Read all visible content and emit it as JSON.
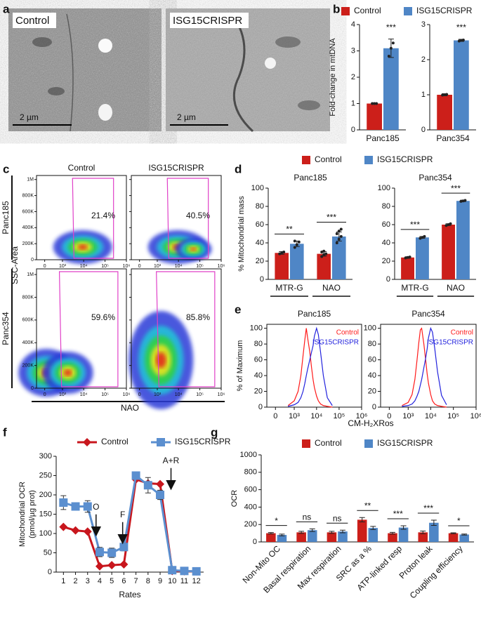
{
  "panel_labels": [
    "a",
    "b",
    "c",
    "d",
    "e",
    "f",
    "g"
  ],
  "images": [
    {
      "label": "Control",
      "scale_bar": "2 µm"
    },
    {
      "label": "ISG15CRISPR",
      "scale_bar": "2 µm"
    }
  ],
  "chart_data": [
    {
      "type": "bar",
      "ylabel": "Fold-change in mtDNA",
      "categories": [
        "Panc185"
      ],
      "legend": "top",
      "series": [
        {
          "name": "Control",
          "color": "#cc1f1a",
          "values": [
            1.0
          ],
          "errors": [
            0.02
          ],
          "points": [
            [
              1.0,
              1.0,
              1.0
            ]
          ]
        },
        {
          "name": "ISG15CRISPR",
          "color": "#4f86c6",
          "values": [
            3.1
          ],
          "errors": [
            0.35
          ],
          "points": [
            [
              2.8,
              3.1,
              3.3
            ]
          ]
        }
      ],
      "significance": [
        "***"
      ],
      "ylim": [
        0,
        4
      ],
      "yticks": [
        0,
        1,
        2,
        3,
        4
      ]
    },
    {
      "type": "bar",
      "categories": [
        "Panc354"
      ],
      "series": [
        {
          "color": "#cc1f1a",
          "values": [
            1.0
          ],
          "errors": [
            0.03
          ],
          "points": [
            [
              0.99,
              1.0,
              1.01
            ]
          ]
        },
        {
          "color": "#4f86c6",
          "values": [
            2.55
          ],
          "errors": [
            0.03
          ],
          "points": [
            [
              2.53,
              2.55,
              2.56
            ]
          ]
        }
      ],
      "significance": [
        "***"
      ],
      "ylim": [
        0,
        3
      ],
      "yticks": [
        0,
        1,
        2,
        3
      ]
    },
    {
      "type": "flow",
      "ylabel": "SSC-Area",
      "xlabel": "NAO",
      "columns": [
        "Control",
        "ISG15CRISPR"
      ],
      "rows": [
        "Panc185",
        "Panc354"
      ],
      "values": [
        [
          21.4,
          40.5
        ],
        [
          59.6,
          85.8
        ]
      ],
      "value_labels": [
        [
          "21.4%",
          "40.5%"
        ],
        [
          "59.6%",
          "85.8%"
        ]
      ],
      "xscale": "biexponential",
      "frame": true,
      "xlim": [
        -300,
        1000000
      ],
      "xticks": [
        0,
        {
          "value": 1000,
          "label": "10³"
        },
        {
          "value": 10000,
          "label": "10⁴"
        },
        {
          "value": 100000,
          "label": "10⁵"
        },
        {
          "value": 1000000,
          "label": "10⁶"
        }
      ],
      "ylim": [
        0,
        1050000
      ],
      "yticks": [
        0,
        {
          "value": 200000,
          "label": "200K"
        },
        {
          "value": 400000,
          "label": "400K"
        },
        {
          "value": 600000,
          "label": "600K"
        },
        {
          "value": 800000,
          "label": "800K"
        },
        {
          "value": 1000000,
          "label": "1M"
        }
      ]
    },
    {
      "type": "bar",
      "title": "Panc185",
      "ylabel": "% Mitochondrial mass",
      "categories": [
        "MTR-G",
        "NAO"
      ],
      "legend": "top",
      "series": [
        {
          "name": "Control",
          "color": "#cc1f1a",
          "values": [
            29,
            28
          ],
          "errors": [
            1.5,
            2.5
          ],
          "points": [
            [
              28,
              29,
              30
            ],
            [
              25,
              27,
              28,
              30,
              31
            ]
          ]
        },
        {
          "name": "ISG15CRISPR",
          "color": "#4f86c6",
          "values": [
            39,
            47
          ],
          "errors": [
            3,
            5
          ],
          "points": [
            [
              35,
              38,
              41,
              42
            ],
            [
              40,
              44,
              47,
              50,
              53,
              55
            ]
          ]
        }
      ],
      "significance": [
        "**",
        "***"
      ],
      "ylim": [
        0,
        100
      ],
      "yticks": [
        0,
        20,
        40,
        60,
        80,
        100
      ]
    },
    {
      "type": "bar",
      "title": "Panc354",
      "categories": [
        "MTR-G",
        "NAO"
      ],
      "series": [
        {
          "color": "#cc1f1a",
          "values": [
            24,
            60
          ],
          "errors": [
            0.8,
            1
          ],
          "points": [
            [
              23.5,
              24,
              24.5
            ],
            [
              59,
              60,
              61
            ]
          ]
        },
        {
          "color": "#4f86c6",
          "values": [
            46,
            86
          ],
          "errors": [
            1,
            0.8
          ],
          "points": [
            [
              45,
              46,
              47
            ],
            [
              85.5,
              86,
              86.5
            ]
          ]
        }
      ],
      "significance": [
        "***",
        "***"
      ],
      "ylim": [
        0,
        100
      ],
      "yticks": [
        0,
        20,
        40,
        60,
        80,
        100
      ]
    },
    {
      "type": "line",
      "title": "Panc185",
      "ylabel": "% of Maximum",
      "xlabel": "CM-H₂XRos",
      "xscale": "biexponential",
      "frame": true,
      "legend": "upper right",
      "x": [
        500,
        1000,
        1500,
        2000,
        2500,
        3000,
        3500,
        4000,
        5000,
        6000,
        7000,
        8000,
        10000,
        12000,
        15000,
        20000,
        30000,
        50000
      ],
      "series": [
        {
          "name": "Control",
          "color": "#ff1a1a",
          "values": [
            2,
            8,
            20,
            40,
            65,
            85,
            100,
            88,
            70,
            50,
            35,
            25,
            14,
            8,
            4,
            2,
            1,
            0
          ]
        },
        {
          "name": "ISG15CRISPR",
          "color": "#2222dd",
          "values": [
            1,
            3,
            6,
            12,
            20,
            30,
            40,
            48,
            60,
            70,
            78,
            90,
            100,
            92,
            70,
            40,
            12,
            2
          ]
        }
      ],
      "xlim": [
        -300,
        1000000
      ],
      "xticks": [
        0,
        {
          "value": 1000,
          "label": "10³"
        },
        {
          "value": 10000,
          "label": "10⁴"
        },
        {
          "value": 100000,
          "label": "10⁵"
        },
        {
          "value": 1000000,
          "label": "10⁶"
        }
      ],
      "ylim": [
        0,
        105
      ],
      "yticks": [
        0,
        20,
        40,
        60,
        80,
        100
      ]
    },
    {
      "type": "line",
      "title": "Panc354",
      "xscale": "biexponential",
      "frame": true,
      "legend": "upper right",
      "x": [
        500,
        1000,
        1500,
        2000,
        2500,
        3000,
        3500,
        4000,
        5000,
        6000,
        7000,
        8000,
        10000,
        12000,
        15000,
        20000,
        30000,
        50000
      ],
      "series": [
        {
          "name": "Control",
          "color": "#ff1a1a",
          "values": [
            2,
            6,
            16,
            35,
            60,
            82,
            98,
            100,
            80,
            60,
            42,
            30,
            16,
            8,
            4,
            2,
            1,
            0
          ]
        },
        {
          "name": "ISG15CRISPR",
          "color": "#2222dd",
          "values": [
            1,
            2,
            4,
            8,
            14,
            20,
            28,
            35,
            50,
            62,
            74,
            88,
            100,
            95,
            75,
            45,
            15,
            3
          ]
        }
      ],
      "xlim": [
        -300,
        1000000
      ],
      "xticks": [
        0,
        {
          "value": 1000,
          "label": "10³"
        },
        {
          "value": 10000,
          "label": "10⁴"
        },
        {
          "value": 100000,
          "label": "10⁵"
        },
        {
          "value": 1000000,
          "label": "10⁶"
        }
      ],
      "ylim": [
        0,
        105
      ],
      "yticks": [
        0,
        20,
        40,
        60,
        80,
        100
      ]
    },
    {
      "type": "line",
      "ylabel": [
        "Mitochondrial OCR",
        "(pmol/µg prot)"
      ],
      "xlabel": "Rates",
      "legend": "top",
      "x": [
        1,
        2,
        3,
        4,
        5,
        6,
        7,
        8,
        9,
        10,
        11,
        12
      ],
      "series": [
        {
          "name": "Control",
          "color": "#c8161d",
          "marker": "diamond",
          "values": [
            117,
            108,
            105,
            15,
            18,
            20,
            240,
            230,
            228,
            3,
            2,
            2
          ]
        },
        {
          "name": "ISG15CRISPR",
          "color": "#5b8fcf",
          "marker": "square",
          "values": [
            180,
            170,
            170,
            52,
            50,
            65,
            250,
            225,
            200,
            5,
            3,
            2
          ],
          "errors": [
            18,
            10,
            15,
            12,
            12,
            10,
            10,
            20,
            12,
            2,
            2,
            2
          ]
        }
      ],
      "annotations": [
        {
          "text": "O",
          "x": 3.7,
          "y": 95
        },
        {
          "text": "F",
          "x": 5.9,
          "y": 75
        },
        {
          "text": "A+R",
          "x": 9.9,
          "y": 215
        }
      ],
      "xlim": [
        0.4,
        12.6
      ],
      "xticks": [
        1,
        2,
        3,
        4,
        5,
        6,
        7,
        8,
        9,
        10,
        11,
        12
      ],
      "ylim": [
        0,
        300
      ],
      "yticks": [
        0,
        50,
        100,
        150,
        200,
        250,
        300
      ]
    },
    {
      "type": "bar",
      "ylabel": "OCR",
      "legend": "top",
      "categories": [
        "Non-Mito OC",
        "Basal respiration",
        "Max respiration",
        "SRC as a %",
        "ATP-linked resp",
        "Proton leak",
        "Coupling efficiency"
      ],
      "series": [
        {
          "name": "Control",
          "color": "#cc1f1a",
          "values": [
            100,
            110,
            110,
            255,
            100,
            110,
            100
          ],
          "errors": [
            8,
            12,
            12,
            25,
            10,
            15,
            5
          ]
        },
        {
          "name": "ISG15CRISPR",
          "color": "#4f86c6",
          "values": [
            80,
            135,
            120,
            160,
            165,
            220,
            85
          ],
          "errors": [
            10,
            15,
            15,
            18,
            20,
            30,
            6
          ]
        }
      ],
      "significance": [
        "*",
        "ns",
        "ns",
        "**",
        "***",
        "***",
        "*"
      ],
      "ylim": [
        0,
        1000
      ],
      "yticks": [
        0,
        200,
        400,
        600,
        800,
        1000
      ]
    }
  ]
}
